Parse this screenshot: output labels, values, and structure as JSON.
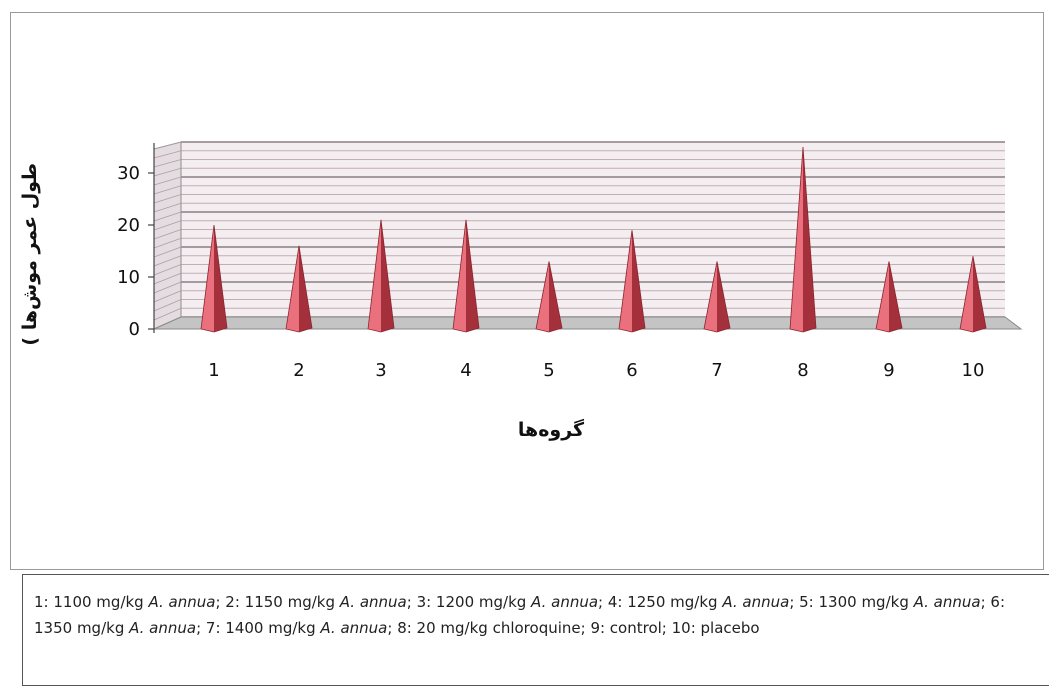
{
  "chart_data": {
    "type": "bar",
    "style": "3d-cone",
    "categories": [
      "1",
      "2",
      "3",
      "4",
      "5",
      "6",
      "7",
      "8",
      "9",
      "10"
    ],
    "values": [
      20,
      16,
      21,
      21,
      13,
      19,
      13,
      35,
      13,
      14
    ],
    "ylabel": "طول عمر موش‌ها )",
    "xlabel": "گروه‌ها",
    "ylim": [
      0,
      35
    ],
    "yticks": [
      "0",
      "10",
      "20",
      "30"
    ],
    "grid": true,
    "bar_color": "#e06070",
    "legend": "none"
  },
  "caption": {
    "segments": [
      {
        "text": "1: 1100 mg/kg ",
        "italic": false
      },
      {
        "text": "A. annua",
        "italic": true
      },
      {
        "text": "; 2: 1150 mg/kg ",
        "italic": false
      },
      {
        "text": "A. annua",
        "italic": true
      },
      {
        "text": "; 3: 1200 mg/kg ",
        "italic": false
      },
      {
        "text": "A. annua",
        "italic": true
      },
      {
        "text": "; 4: 1250 mg/kg ",
        "italic": false
      },
      {
        "text": "A. annua",
        "italic": true
      },
      {
        "text": "; 5: 1300 mg/kg ",
        "italic": false
      },
      {
        "text": "A. annua",
        "italic": true
      },
      {
        "text": "; 6: 1350 mg/kg ",
        "italic": false
      },
      {
        "text": "A. annua",
        "italic": true
      },
      {
        "text": "; 7: 1400 mg/kg ",
        "italic": false
      },
      {
        "text": "A. annua",
        "italic": true
      },
      {
        "text": "; 8: 20 mg/kg chloroquine; 9: control; 10: placebo",
        "italic": false
      }
    ]
  }
}
